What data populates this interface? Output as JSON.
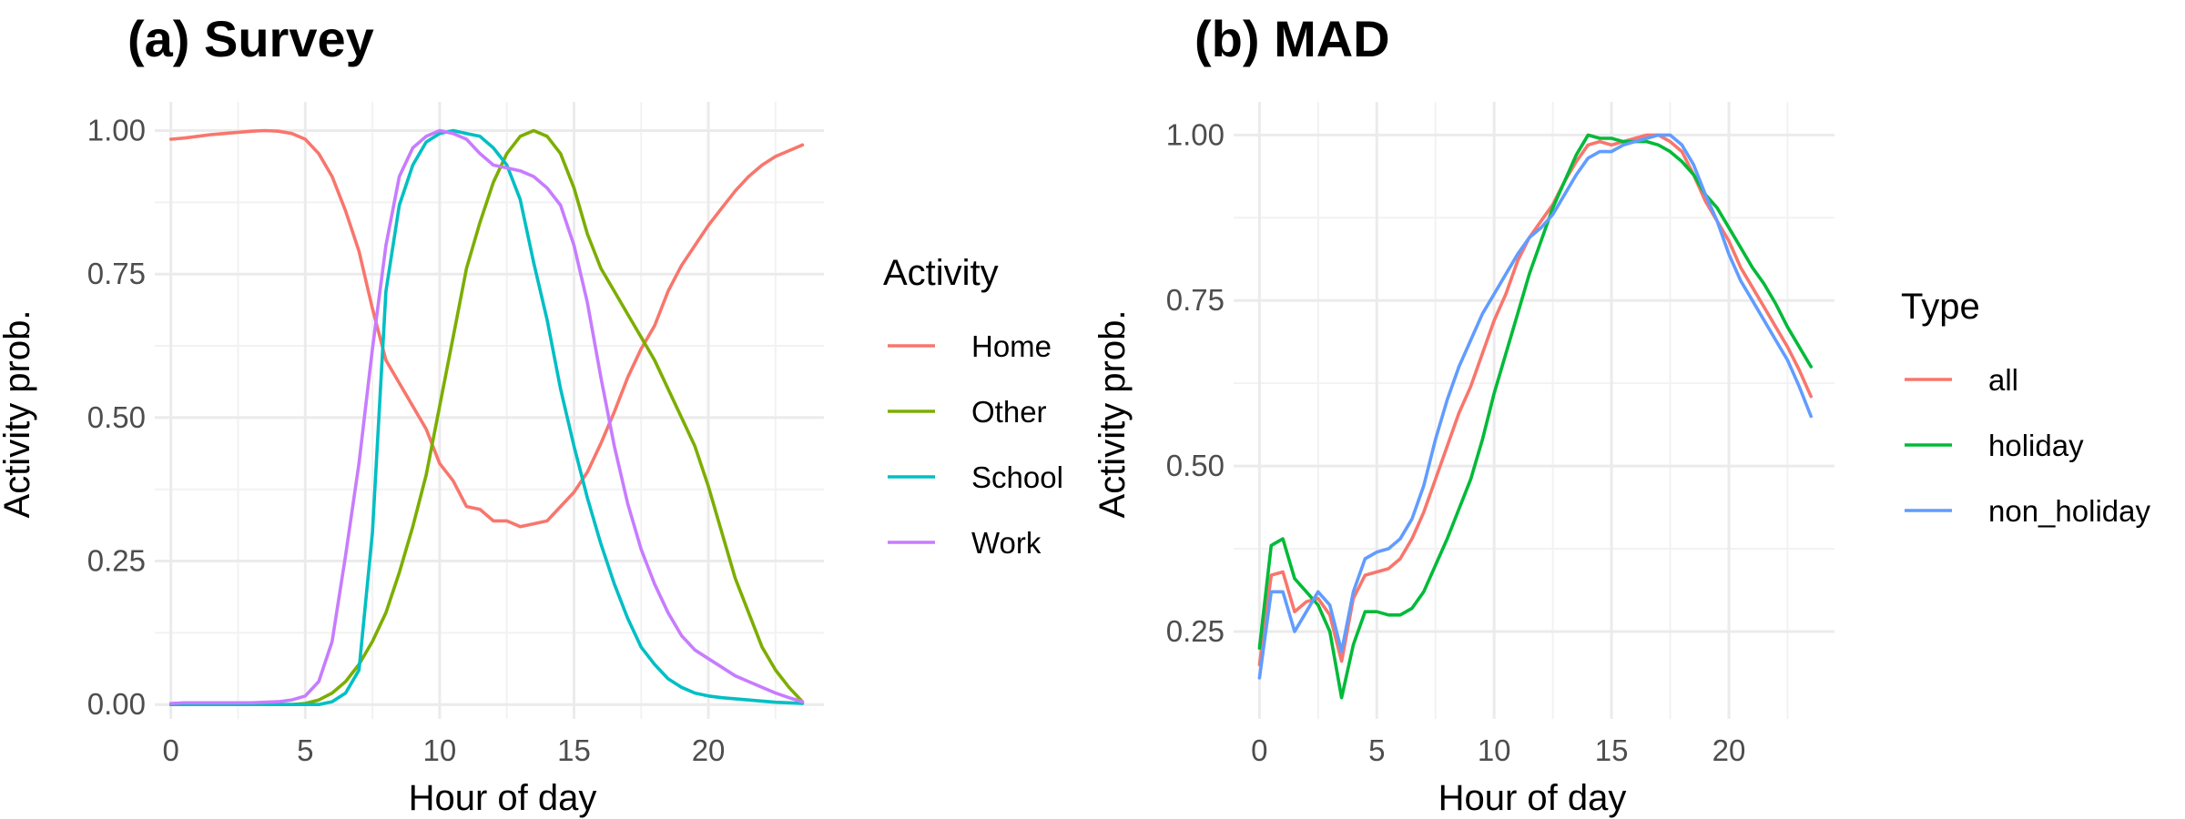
{
  "chart_data": [
    {
      "type": "line",
      "title": "(a) Survey",
      "xlabel": "Hour of day",
      "ylabel": "Activity prob.",
      "xlim": [
        -0.6,
        24.3
      ],
      "ylim": [
        -0.025,
        1.05
      ],
      "x_ticks": [
        0,
        5,
        10,
        15,
        20
      ],
      "x_tick_labels": [
        "0",
        "5",
        "10",
        "15",
        "20"
      ],
      "y_ticks": [
        0,
        0.25,
        0.5,
        0.75,
        1
      ],
      "y_tick_labels": [
        "0.00",
        "0.25",
        "0.50",
        "0.75",
        "1.00"
      ],
      "grid": true,
      "legend": {
        "title": "Activity",
        "position": "right"
      },
      "x": [
        0,
        0.5,
        1,
        1.5,
        2,
        2.5,
        3,
        3.5,
        4,
        4.5,
        5,
        5.5,
        6,
        6.5,
        7,
        7.5,
        8,
        8.5,
        9,
        9.5,
        10,
        10.5,
        11,
        11.5,
        12,
        12.5,
        13,
        13.5,
        14,
        14.5,
        15,
        15.5,
        16,
        16.5,
        17,
        17.5,
        18,
        18.5,
        19,
        19.5,
        20,
        20.5,
        21,
        21.5,
        22,
        22.5,
        23,
        23.5
      ],
      "series": [
        {
          "name": "Home",
          "color": "#F8766D",
          "values": [
            0.985,
            0.987,
            0.99,
            0.993,
            0.995,
            0.997,
            0.999,
            1.0,
            0.999,
            0.995,
            0.985,
            0.96,
            0.92,
            0.86,
            0.79,
            0.69,
            0.6,
            0.56,
            0.52,
            0.48,
            0.42,
            0.39,
            0.345,
            0.34,
            0.32,
            0.32,
            0.31,
            0.315,
            0.32,
            0.345,
            0.37,
            0.405,
            0.455,
            0.51,
            0.57,
            0.62,
            0.66,
            0.72,
            0.765,
            0.8,
            0.835,
            0.865,
            0.895,
            0.92,
            0.94,
            0.955,
            0.965,
            0.975
          ]
        },
        {
          "name": "Other",
          "color": "#7CAE00",
          "values": [
            0.0,
            0.0,
            0.0,
            0.0,
            0.0,
            0.0,
            0.0,
            0.0,
            0.0,
            0.0,
            0.002,
            0.008,
            0.02,
            0.04,
            0.07,
            0.11,
            0.16,
            0.23,
            0.31,
            0.4,
            0.52,
            0.64,
            0.76,
            0.84,
            0.91,
            0.96,
            0.99,
            1.0,
            0.99,
            0.96,
            0.9,
            0.82,
            0.76,
            0.72,
            0.68,
            0.64,
            0.6,
            0.55,
            0.5,
            0.45,
            0.38,
            0.3,
            0.22,
            0.16,
            0.1,
            0.06,
            0.03,
            0.005
          ]
        },
        {
          "name": "School",
          "color": "#00BFC4",
          "values": [
            0.0,
            0.0,
            0.0,
            0.0,
            0.0,
            0.0,
            0.0,
            0.0,
            0.0,
            0.0,
            0.0,
            0.0,
            0.005,
            0.02,
            0.06,
            0.3,
            0.72,
            0.87,
            0.94,
            0.98,
            0.995,
            1.0,
            0.995,
            0.99,
            0.97,
            0.94,
            0.88,
            0.77,
            0.67,
            0.55,
            0.45,
            0.36,
            0.28,
            0.21,
            0.15,
            0.1,
            0.07,
            0.045,
            0.03,
            0.02,
            0.015,
            0.012,
            0.01,
            0.008,
            0.006,
            0.004,
            0.003,
            0.002
          ]
        },
        {
          "name": "Work",
          "color": "#C77CFF",
          "values": [
            0.002,
            0.003,
            0.003,
            0.003,
            0.003,
            0.003,
            0.003,
            0.004,
            0.005,
            0.008,
            0.015,
            0.04,
            0.11,
            0.26,
            0.42,
            0.62,
            0.8,
            0.92,
            0.97,
            0.99,
            1.0,
            0.995,
            0.985,
            0.96,
            0.94,
            0.935,
            0.93,
            0.92,
            0.9,
            0.87,
            0.8,
            0.7,
            0.57,
            0.45,
            0.35,
            0.27,
            0.21,
            0.16,
            0.12,
            0.095,
            0.08,
            0.065,
            0.05,
            0.04,
            0.03,
            0.02,
            0.012,
            0.005
          ]
        }
      ]
    },
    {
      "type": "line",
      "title": "(b) MAD",
      "xlabel": "Hour of day",
      "ylabel": "Activity prob.",
      "xlim": [
        -1.1,
        24.5
      ],
      "ylim": [
        0.118,
        1.05
      ],
      "x_ticks": [
        0,
        5,
        10,
        15,
        20
      ],
      "x_tick_labels": [
        "0",
        "5",
        "10",
        "15",
        "20"
      ],
      "y_ticks": [
        0.25,
        0.5,
        0.75,
        1
      ],
      "y_tick_labels": [
        "0.25",
        "0.50",
        "0.75",
        "1.00"
      ],
      "grid": true,
      "legend": {
        "title": "Type",
        "position": "right"
      },
      "x": [
        0,
        0.5,
        1,
        1.5,
        2,
        2.5,
        3,
        3.5,
        4,
        4.5,
        5,
        5.5,
        6,
        6.5,
        7,
        7.5,
        8,
        8.5,
        9,
        9.5,
        10,
        10.5,
        11,
        11.5,
        12,
        12.5,
        13,
        13.5,
        14,
        14.5,
        15,
        15.5,
        16,
        16.5,
        17,
        17.5,
        18,
        18.5,
        19,
        19.5,
        20,
        20.5,
        21,
        21.5,
        22,
        22.5,
        23,
        23.5
      ],
      "series": [
        {
          "name": "all",
          "color": "#F8766D",
          "values": [
            0.2,
            0.335,
            0.34,
            0.28,
            0.295,
            0.3,
            0.275,
            0.205,
            0.3,
            0.335,
            0.34,
            0.345,
            0.36,
            0.39,
            0.43,
            0.48,
            0.53,
            0.58,
            0.62,
            0.67,
            0.72,
            0.76,
            0.81,
            0.845,
            0.87,
            0.895,
            0.93,
            0.96,
            0.985,
            0.99,
            0.985,
            0.99,
            0.995,
            1.0,
            1.0,
            0.99,
            0.975,
            0.94,
            0.9,
            0.87,
            0.84,
            0.8,
            0.77,
            0.74,
            0.71,
            0.68,
            0.645,
            0.605
          ]
        },
        {
          "name": "holiday",
          "color": "#00BA38",
          "values": [
            0.225,
            0.38,
            0.39,
            0.33,
            0.31,
            0.29,
            0.25,
            0.15,
            0.23,
            0.28,
            0.28,
            0.275,
            0.275,
            0.285,
            0.31,
            0.35,
            0.39,
            0.435,
            0.48,
            0.54,
            0.61,
            0.67,
            0.73,
            0.79,
            0.84,
            0.89,
            0.93,
            0.97,
            1.0,
            0.995,
            0.995,
            0.99,
            0.99,
            0.99,
            0.985,
            0.975,
            0.96,
            0.94,
            0.91,
            0.89,
            0.86,
            0.83,
            0.8,
            0.775,
            0.745,
            0.71,
            0.68,
            0.65
          ]
        },
        {
          "name": "non_holiday",
          "color": "#619CFF",
          "values": [
            0.18,
            0.31,
            0.31,
            0.25,
            0.28,
            0.31,
            0.29,
            0.22,
            0.31,
            0.36,
            0.37,
            0.375,
            0.39,
            0.42,
            0.47,
            0.54,
            0.6,
            0.65,
            0.69,
            0.73,
            0.76,
            0.79,
            0.82,
            0.845,
            0.86,
            0.88,
            0.91,
            0.94,
            0.965,
            0.975,
            0.975,
            0.985,
            0.99,
            0.995,
            1.0,
            1.0,
            0.985,
            0.955,
            0.91,
            0.87,
            0.82,
            0.78,
            0.75,
            0.72,
            0.69,
            0.66,
            0.62,
            0.575
          ]
        }
      ]
    }
  ]
}
